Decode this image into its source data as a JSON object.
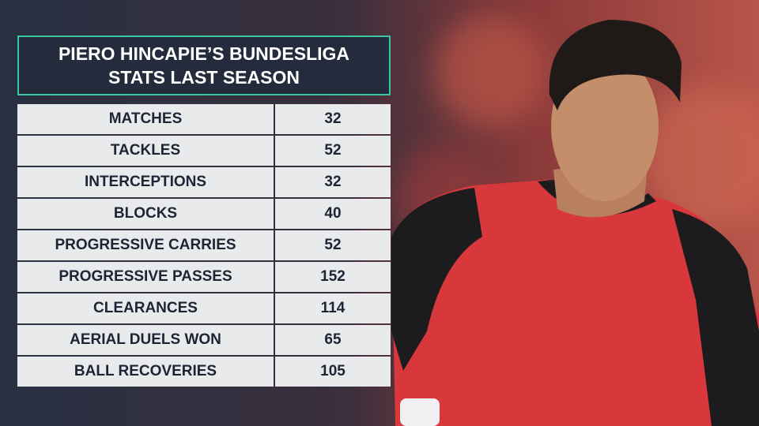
{
  "header": {
    "title": "PIERO HINCAPIE’S BUNDESLIGA STATS LAST SEASON"
  },
  "table": {
    "rows": [
      [
        "MATCHES",
        32
      ],
      [
        "TACKLES",
        52
      ],
      [
        "INTERCEPTIONS",
        32
      ],
      [
        "BLOCKS",
        40
      ],
      [
        "PROGRESSIVE CARRIES",
        52
      ],
      [
        "PROGRESSIVE PASSES",
        152
      ],
      [
        "CLEARANCES",
        114
      ],
      [
        "AERIAL DUELS WON",
        65
      ],
      [
        "BALL RECOVERIES",
        105
      ]
    ]
  }
}
